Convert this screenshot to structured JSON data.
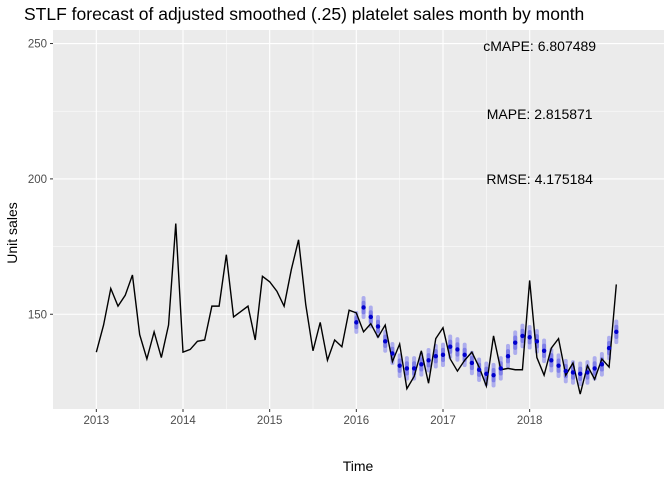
{
  "chart_data": {
    "type": "line",
    "title": "STLF forecast of adjusted smoothed (.25) platelet sales month by month",
    "xlabel": "Time",
    "ylabel": "Unit sales",
    "xlim": [
      2012.5,
      2019.55
    ],
    "ylim": [
      115,
      255
    ],
    "x_ticks": [
      2013,
      2014,
      2015,
      2016,
      2017,
      2018
    ],
    "x_tick_labels": [
      "2013",
      "2014",
      "2015",
      "2016",
      "2017",
      "2018"
    ],
    "y_ticks": [
      150,
      200,
      250
    ],
    "y_tick_labels": [
      "150",
      "200",
      "250"
    ],
    "grid": true,
    "annotations": [
      {
        "text": "cMAPE:  6.807489",
        "x": 2018.0,
        "y": 249
      },
      {
        "text": "MAPE:  2.815871",
        "x": 2018.0,
        "y": 224
      },
      {
        "text": "RMSE:  4.175184",
        "x": 2018.0,
        "y": 200
      }
    ],
    "series": [
      {
        "kind": "actual",
        "color": "#000000",
        "start": 2013.0,
        "step": 0.08333,
        "values": [
          136,
          146,
          159.5,
          153,
          157,
          164.5,
          142.5,
          133.5,
          143.5,
          134,
          146,
          183.5,
          136,
          137,
          140,
          140.5,
          153,
          153,
          172,
          149,
          151,
          153,
          140.5,
          164,
          162,
          158.5,
          153,
          166.5,
          177.5,
          153.5,
          136.5,
          147,
          133,
          140.5,
          138,
          151.5,
          150.5,
          143.5,
          146.5,
          141.5,
          146,
          132.5,
          139,
          122.5,
          127,
          136.5,
          124.5,
          141,
          145,
          133.5,
          129,
          133,
          136,
          130.5,
          123.5,
          142,
          129.5,
          130,
          129.5,
          129.5,
          162.5,
          134,
          127.5,
          137.5,
          141,
          127.5,
          132,
          120.5,
          131,
          126,
          133.5,
          130.5,
          161
        ]
      },
      {
        "kind": "forecast",
        "color": "#0000cc",
        "interval_color": "#9999ee",
        "start": 2016.0,
        "step": 0.08333,
        "values": [
          147,
          152.5,
          149,
          145.5,
          140,
          135.5,
          131,
          130,
          130,
          131.5,
          133,
          134.5,
          135,
          138,
          137,
          135,
          132,
          129.5,
          128,
          127.5,
          130,
          134.5,
          139.5,
          142,
          141.5,
          140,
          136.5,
          133,
          131,
          129,
          128.5,
          128,
          128.5,
          130,
          131.5,
          137.5,
          143.5
        ],
        "interval_width": [
          3.5,
          3.5,
          3.5,
          3.5,
          3.5,
          3.5,
          3.8,
          3.8,
          3.8,
          3.8,
          3.8,
          3.8,
          3.8,
          3.8,
          3.8,
          3.8,
          3.8,
          3.8,
          3.8,
          3.8,
          3.8,
          3.8,
          3.8,
          3.8,
          3.8,
          3.8,
          3.8,
          3.8,
          3.8,
          3.8,
          3.8,
          3.8,
          3.8,
          3.8,
          3.8,
          3.8,
          3.8
        ]
      }
    ]
  }
}
